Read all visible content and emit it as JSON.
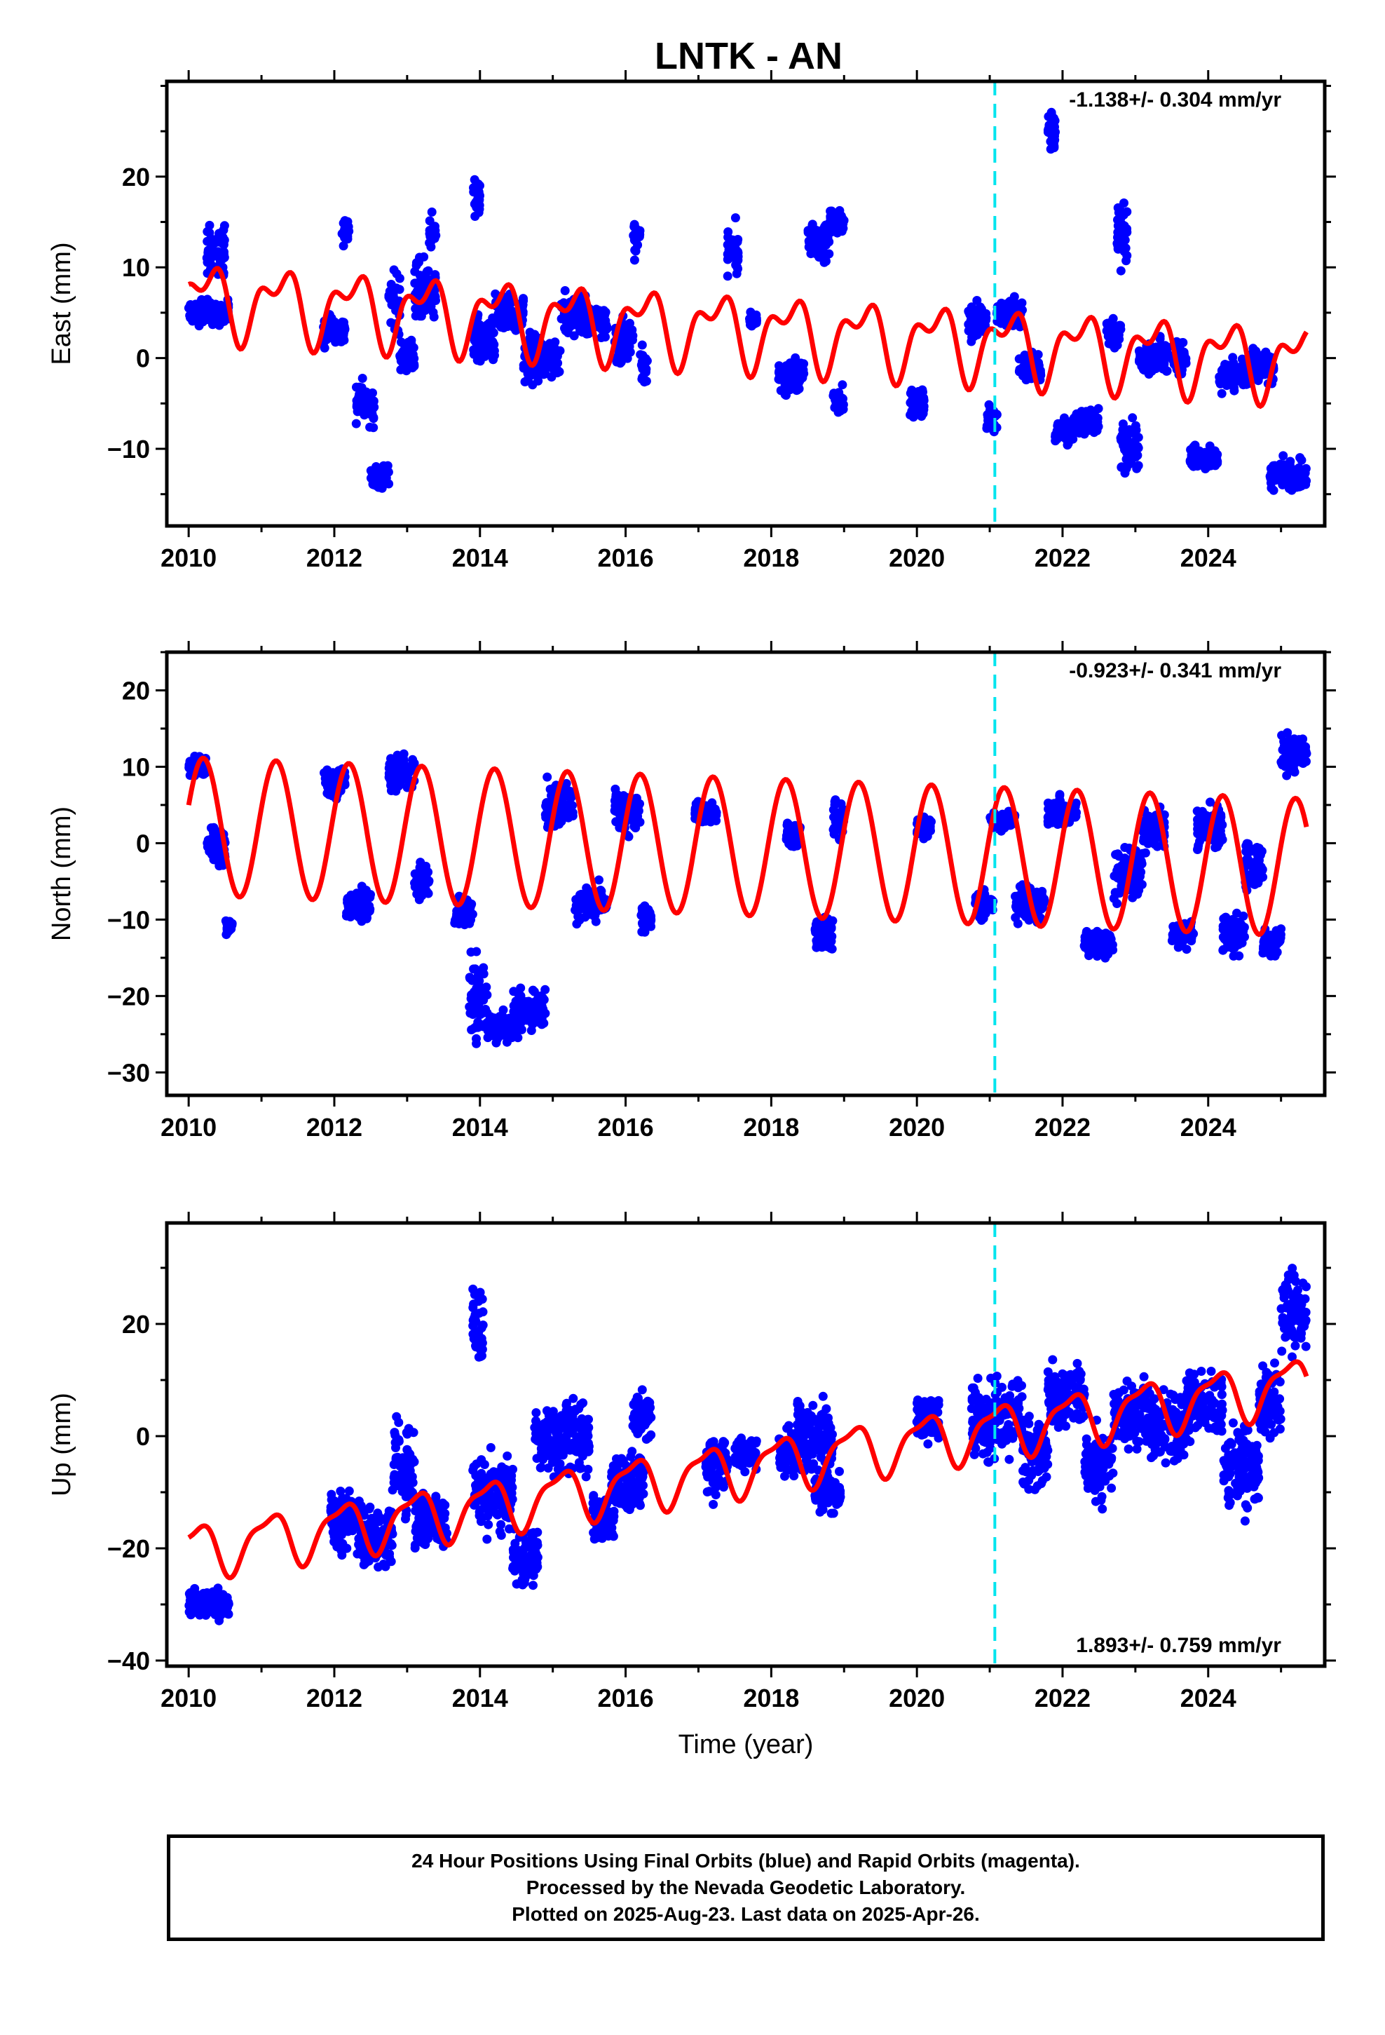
{
  "title": "LNTK - AN",
  "footer": {
    "line1": "24 Hour Positions Using Final Orbits (blue) and Rapid Orbits (magenta).",
    "line2": "Processed by the Nevada Geodetic Laboratory.",
    "line3": "Plotted on 2025-Aug-23. Last data on 2025-Apr-26."
  },
  "colors": {
    "points": "#0000ff",
    "model": "#ff0000",
    "event_line": "#00e5ee",
    "frame": "#000000"
  },
  "chart_data": [
    {
      "type": "scatter",
      "ylabel": "East (mm)",
      "xlabel": "",
      "velocity_text": "-1.138+/- 0.304 mm/yr",
      "xlim": [
        2009.7,
        2025.6
      ],
      "ylim": [
        -18.5,
        30.5
      ],
      "xticks": [
        2010,
        2012,
        2014,
        2016,
        2018,
        2020,
        2022,
        2024
      ],
      "yticks": [
        -10,
        0,
        10,
        20
      ],
      "grid": false,
      "event_line_year": 2021.07,
      "model_series": {
        "trend_start": 6.5,
        "trend_rate": -0.45,
        "annual_amp": 3.3,
        "annual_phase": 0.25,
        "semiannual_amp": 2.0,
        "semiannual_phase": 0.45
      },
      "data_segments": [
        [
          2010.0,
          2010.55,
          5,
          1.5
        ],
        [
          2010.25,
          2010.5,
          12,
          3
        ],
        [
          2011.85,
          2012.15,
          3,
          2
        ],
        [
          2012.1,
          2012.2,
          14,
          2
        ],
        [
          2012.3,
          2012.55,
          -5,
          2.5
        ],
        [
          2012.5,
          2012.75,
          -13,
          1.5
        ],
        [
          2012.75,
          2012.9,
          6,
          4
        ],
        [
          2012.9,
          2013.1,
          0,
          2
        ],
        [
          2013.1,
          2013.4,
          7,
          4
        ],
        [
          2013.3,
          2013.4,
          14,
          2
        ],
        [
          2013.9,
          2014.0,
          18,
          3
        ],
        [
          2013.9,
          2014.2,
          2,
          3
        ],
        [
          2014.2,
          2014.6,
          5,
          2
        ],
        [
          2014.6,
          2014.85,
          0,
          3
        ],
        [
          2014.8,
          2015.1,
          0,
          2.5
        ],
        [
          2015.1,
          2015.45,
          5,
          3
        ],
        [
          2015.4,
          2015.75,
          4,
          2
        ],
        [
          2015.85,
          2016.1,
          2,
          3
        ],
        [
          2016.1,
          2016.2,
          13,
          2
        ],
        [
          2016.2,
          2016.3,
          -1,
          2
        ],
        [
          2017.4,
          2017.55,
          12,
          3
        ],
        [
          2017.7,
          2017.8,
          4,
          1
        ],
        [
          2018.1,
          2018.45,
          -2,
          2
        ],
        [
          2018.5,
          2018.8,
          13,
          2.5
        ],
        [
          2018.8,
          2019.0,
          15,
          1.5
        ],
        [
          2018.85,
          2019.0,
          -5,
          2
        ],
        [
          2019.9,
          2020.1,
          -5,
          2
        ],
        [
          2020.7,
          2020.95,
          4,
          2
        ],
        [
          2020.95,
          2021.1,
          -7,
          2
        ],
        [
          2021.1,
          2021.45,
          5,
          1.5
        ],
        [
          2021.4,
          2021.7,
          -1,
          2
        ],
        [
          2021.8,
          2021.9,
          25,
          3
        ],
        [
          2021.9,
          2022.15,
          -8,
          1.5
        ],
        [
          2022.15,
          2022.5,
          -7,
          1.5
        ],
        [
          2022.6,
          2022.8,
          3,
          2
        ],
        [
          2022.75,
          2022.9,
          14,
          4
        ],
        [
          2022.8,
          2023.05,
          -10,
          3
        ],
        [
          2023.05,
          2023.45,
          0,
          2
        ],
        [
          2023.5,
          2023.7,
          0,
          2
        ],
        [
          2023.75,
          2024.15,
          -11,
          1.5
        ],
        [
          2024.15,
          2024.55,
          -2,
          2
        ],
        [
          2024.55,
          2024.9,
          -1,
          2
        ],
        [
          2024.85,
          2025.35,
          -13,
          1.8
        ]
      ]
    },
    {
      "type": "scatter",
      "ylabel": "North (mm)",
      "xlabel": "",
      "velocity_text": "-0.923+/- 0.341 mm/yr",
      "xlim": [
        2009.7,
        2025.6
      ],
      "ylim": [
        -33,
        25
      ],
      "xticks": [
        2010,
        2012,
        2014,
        2016,
        2018,
        2020,
        2022,
        2024
      ],
      "yticks": [
        -30,
        -20,
        -10,
        0,
        10,
        20
      ],
      "grid": false,
      "event_line_year": 2021.07,
      "model_series": {
        "trend_start": 2.2,
        "trend_rate": -0.35,
        "annual_amp": 9.0,
        "annual_phase": 0.2,
        "semiannual_amp": 0.0,
        "semiannual_phase": 0.0
      },
      "data_segments": [
        [
          2010.0,
          2010.25,
          10,
          1.5
        ],
        [
          2010.25,
          2010.5,
          0,
          3
        ],
        [
          2010.5,
          2010.6,
          -11,
          1
        ],
        [
          2011.85,
          2012.15,
          8,
          2
        ],
        [
          2012.15,
          2012.5,
          -8,
          2.5
        ],
        [
          2012.75,
          2013.1,
          9,
          3
        ],
        [
          2013.1,
          2013.3,
          -5,
          2.5
        ],
        [
          2013.65,
          2013.9,
          -9,
          2
        ],
        [
          2013.85,
          2014.1,
          -20,
          7
        ],
        [
          2014.1,
          2014.45,
          -24,
          2.5
        ],
        [
          2014.45,
          2014.9,
          -22,
          3
        ],
        [
          2014.9,
          2015.3,
          5,
          3
        ],
        [
          2015.3,
          2015.75,
          -8,
          2.5
        ],
        [
          2015.85,
          2016.2,
          4,
          3
        ],
        [
          2016.2,
          2016.35,
          -10,
          2
        ],
        [
          2016.95,
          2017.25,
          4,
          1.5
        ],
        [
          2018.2,
          2018.4,
          1,
          2
        ],
        [
          2018.6,
          2018.85,
          -12,
          3
        ],
        [
          2018.85,
          2019.0,
          3,
          3
        ],
        [
          2020.0,
          2020.2,
          2,
          1.5
        ],
        [
          2020.8,
          2021.05,
          -8,
          2
        ],
        [
          2021.0,
          2021.35,
          3,
          1.5
        ],
        [
          2021.35,
          2021.75,
          -8,
          2.5
        ],
        [
          2021.8,
          2022.2,
          4,
          2
        ],
        [
          2022.3,
          2022.7,
          -13,
          2
        ],
        [
          2022.7,
          2023.1,
          -4,
          4
        ],
        [
          2023.1,
          2023.4,
          2,
          3
        ],
        [
          2023.5,
          2023.8,
          -12,
          2
        ],
        [
          2023.85,
          2024.2,
          2,
          3
        ],
        [
          2024.2,
          2024.5,
          -12,
          3
        ],
        [
          2024.5,
          2024.75,
          -3,
          4
        ],
        [
          2024.75,
          2025.0,
          -13,
          2
        ],
        [
          2025.0,
          2025.35,
          12,
          3
        ]
      ]
    },
    {
      "type": "scatter",
      "ylabel": "Up (mm)",
      "xlabel": "Time (year)",
      "velocity_text": "1.893+/- 0.759 mm/yr",
      "xlim": [
        2009.7,
        2025.6
      ],
      "ylim": [
        -41,
        38
      ],
      "xticks": [
        2010,
        2012,
        2014,
        2016,
        2018,
        2020,
        2022,
        2024
      ],
      "yticks": [
        -40,
        -20,
        0,
        20
      ],
      "grid": false,
      "event_line_year": 2021.07,
      "model_series": {
        "trend_start": -20.5,
        "trend_rate": 1.95,
        "annual_amp": 4.5,
        "annual_phase": 0.1,
        "semiannual_amp": 1.5,
        "semiannual_phase": 0.3
      },
      "data_segments": [
        [
          2010.0,
          2010.55,
          -30,
          3
        ],
        [
          2011.95,
          2012.35,
          -15,
          6
        ],
        [
          2012.35,
          2012.8,
          -18,
          7
        ],
        [
          2012.8,
          2013.1,
          -5,
          9
        ],
        [
          2013.1,
          2013.55,
          -15,
          5
        ],
        [
          2013.9,
          2014.05,
          20,
          8
        ],
        [
          2013.9,
          2014.45,
          -10,
          7
        ],
        [
          2014.45,
          2014.8,
          -22,
          6
        ],
        [
          2014.75,
          2015.5,
          0,
          8
        ],
        [
          2015.55,
          2015.85,
          -15,
          5
        ],
        [
          2015.8,
          2016.25,
          -8,
          6
        ],
        [
          2016.1,
          2016.35,
          4,
          5
        ],
        [
          2017.1,
          2017.4,
          -5,
          7
        ],
        [
          2017.5,
          2017.8,
          -3,
          3
        ],
        [
          2018.1,
          2018.35,
          -3,
          5
        ],
        [
          2018.35,
          2018.85,
          0,
          8
        ],
        [
          2018.6,
          2018.95,
          -10,
          4
        ],
        [
          2020.0,
          2020.3,
          3,
          4
        ],
        [
          2020.75,
          2021.45,
          3,
          8
        ],
        [
          2021.45,
          2021.8,
          -3,
          7
        ],
        [
          2021.8,
          2022.3,
          7,
          6
        ],
        [
          2022.3,
          2022.7,
          -5,
          7
        ],
        [
          2022.7,
          2023.2,
          4,
          7
        ],
        [
          2023.2,
          2023.7,
          2,
          7
        ],
        [
          2023.7,
          2024.2,
          6,
          7
        ],
        [
          2024.2,
          2024.7,
          -5,
          8
        ],
        [
          2024.7,
          2025.0,
          6,
          8
        ],
        [
          2025.0,
          2025.35,
          22,
          8
        ]
      ]
    }
  ]
}
